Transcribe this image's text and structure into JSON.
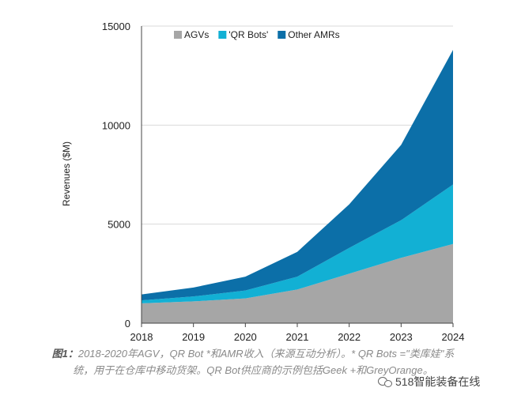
{
  "chart_data": {
    "type": "area",
    "stacked": true,
    "x": [
      "2018",
      "2019",
      "2020",
      "2021",
      "2022",
      "2023",
      "2024"
    ],
    "series": [
      {
        "name": "AGVs",
        "color": "#a6a6a6",
        "values": [
          1000,
          1100,
          1250,
          1700,
          2500,
          3300,
          4000
        ]
      },
      {
        "name": "'QR Bots'",
        "color": "#12b0d4",
        "values": [
          150,
          250,
          400,
          650,
          1300,
          1900,
          3000
        ]
      },
      {
        "name": "Other AMRs",
        "color": "#0c6fa8",
        "values": [
          300,
          450,
          700,
          1250,
          2200,
          3800,
          6800
        ]
      }
    ],
    "ylabel": "Revenues ($M)",
    "yticks": [
      "0",
      "5000",
      "10000",
      "15000"
    ],
    "ylim": [
      0,
      15000
    ],
    "grid": true,
    "legend_position": "top-left"
  },
  "caption": {
    "label": "图1：",
    "text": "2018-2020年AGV，QR Bot *和AMR收入（来源互动分析）。* QR Bots =\"类库娃\"系统，用于在仓库中移动货架。QR Bot供应商的示例包括Geek +和GreyOrange。"
  },
  "watermark": {
    "text": "518智能装备在线",
    "icon": "wechat-icon"
  }
}
